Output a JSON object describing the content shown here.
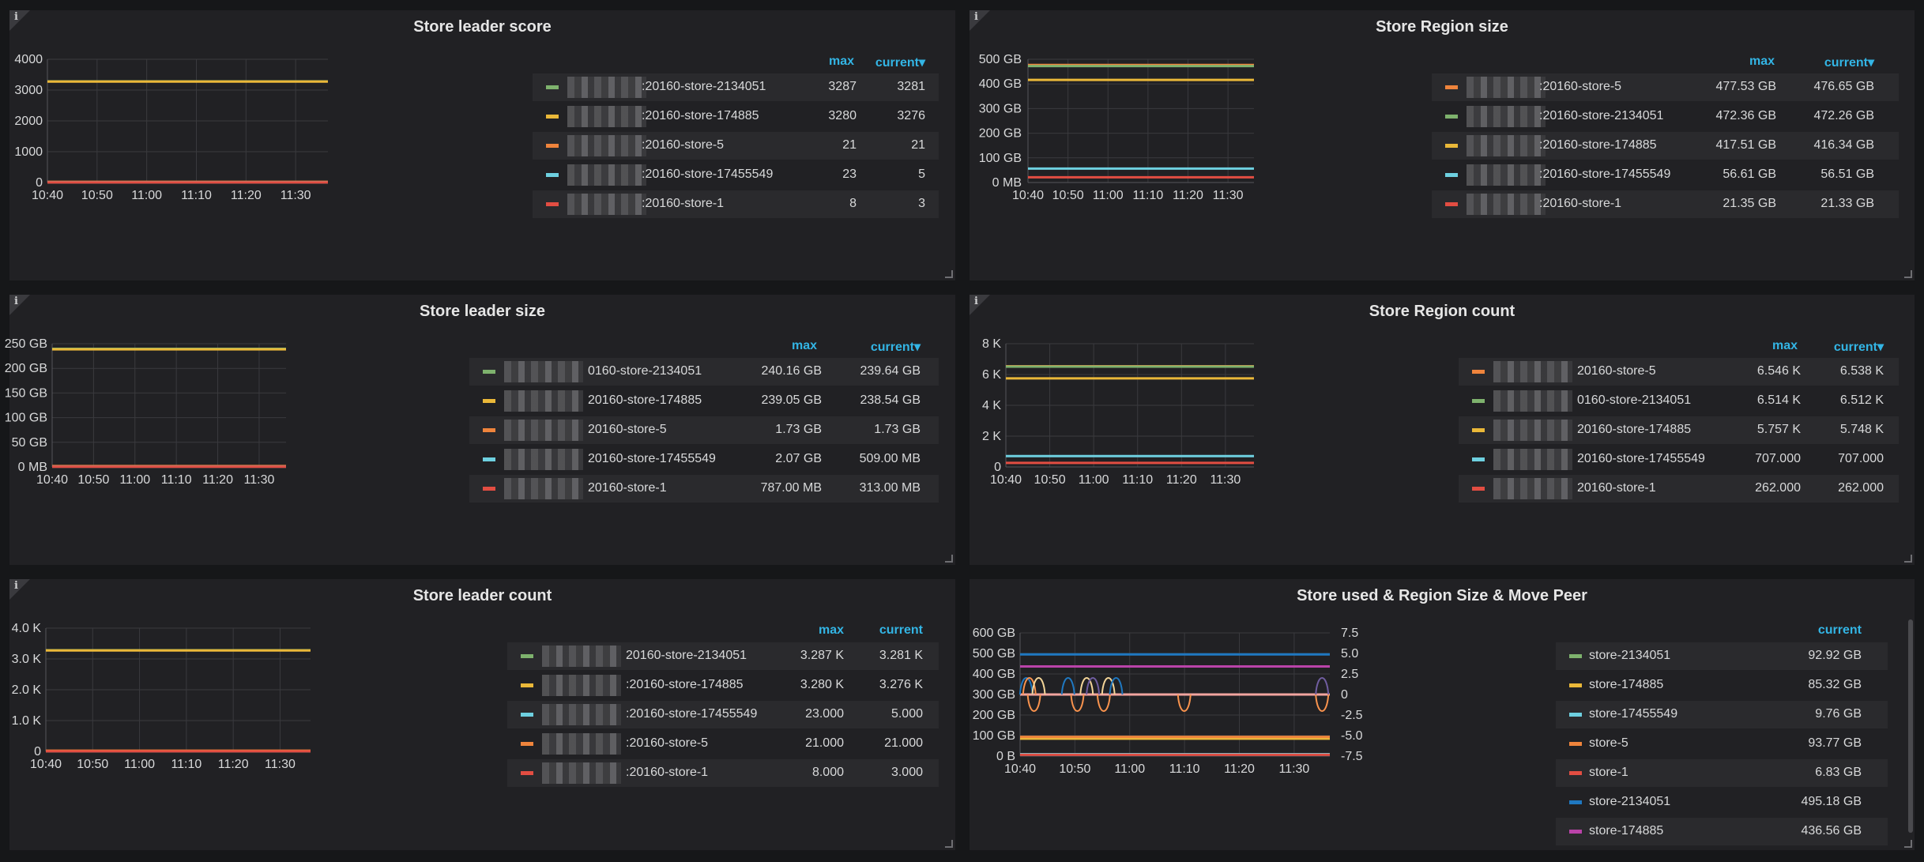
{
  "colors": {
    "green": "#7eb26d",
    "yellow": "#eab839",
    "orange": "#ef843c",
    "cyan": "#6ed0e0",
    "red": "#e24d42",
    "blue": "#1f78c1",
    "pink": "#ba43a9",
    "purple": "#705da0",
    "salmon": "#f9934e",
    "peach": "#f4d598",
    "teal": "#508642"
  },
  "info_glyph": "i",
  "panels": [
    {
      "title": "Store leader score",
      "legend_headers": {
        "max": "max",
        "current": "current▾"
      },
      "legend": [
        {
          "name": ":20160-store-2134051",
          "max": "3287",
          "current": "3281",
          "color": "green"
        },
        {
          "name": ":20160-store-174885",
          "max": "3280",
          "current": "3276",
          "color": "yellow"
        },
        {
          "name": ":20160-store-5",
          "max": "21",
          "current": "21",
          "color": "orange"
        },
        {
          "name": ":20160-store-17455549",
          "max": "23",
          "current": "5",
          "color": "cyan"
        },
        {
          "name": ":20160-store-1",
          "max": "8",
          "current": "3",
          "color": "red"
        }
      ]
    },
    {
      "title": "Store Region size",
      "legend_headers": {
        "max": "max",
        "current": "current▾"
      },
      "legend": [
        {
          "name": ":20160-store-5",
          "max": "477.53 GB",
          "current": "476.65 GB",
          "color": "orange"
        },
        {
          "name": ":20160-store-2134051",
          "max": "472.36 GB",
          "current": "472.26 GB",
          "color": "green"
        },
        {
          "name": ":20160-store-174885",
          "max": "417.51 GB",
          "current": "416.34 GB",
          "color": "yellow"
        },
        {
          "name": ":20160-store-17455549",
          "max": "56.61 GB",
          "current": "56.51 GB",
          "color": "cyan"
        },
        {
          "name": ":20160-store-1",
          "max": "21.35 GB",
          "current": "21.33 GB",
          "color": "red"
        }
      ]
    },
    {
      "title": "Store leader size",
      "legend_headers": {
        "max": "max",
        "current": "current▾"
      },
      "legend": [
        {
          "name": "0160-store-2134051",
          "max": "240.16 GB",
          "current": "239.64 GB",
          "color": "green"
        },
        {
          "name": "20160-store-174885",
          "max": "239.05 GB",
          "current": "238.54 GB",
          "color": "yellow"
        },
        {
          "name": "20160-store-5",
          "max": "1.73 GB",
          "current": "1.73 GB",
          "color": "orange"
        },
        {
          "name": "20160-store-17455549",
          "max": "2.07 GB",
          "current": "509.00 MB",
          "color": "cyan"
        },
        {
          "name": "20160-store-1",
          "max": "787.00 MB",
          "current": "313.00 MB",
          "color": "red"
        }
      ]
    },
    {
      "title": "Store Region count",
      "legend_headers": {
        "max": "max",
        "current": "current▾"
      },
      "legend": [
        {
          "name": "20160-store-5",
          "max": "6.546 K",
          "current": "6.538 K",
          "color": "orange"
        },
        {
          "name": "0160-store-2134051",
          "max": "6.514 K",
          "current": "6.512 K",
          "color": "green"
        },
        {
          "name": "20160-store-174885",
          "max": "5.757 K",
          "current": "5.748 K",
          "color": "yellow"
        },
        {
          "name": "20160-store-17455549",
          "max": "707.000",
          "current": "707.000",
          "color": "cyan"
        },
        {
          "name": "20160-store-1",
          "max": "262.000",
          "current": "262.000",
          "color": "red"
        }
      ]
    },
    {
      "title": "Store leader count",
      "legend_headers": {
        "max": "max",
        "current": "current"
      },
      "legend": [
        {
          "name": "20160-store-2134051",
          "max": "3.287 K",
          "current": "3.281 K",
          "color": "green"
        },
        {
          "name": ":20160-store-174885",
          "max": "3.280 K",
          "current": "3.276 K",
          "color": "yellow"
        },
        {
          "name": ":20160-store-17455549",
          "max": "23.000",
          "current": "5.000",
          "color": "cyan"
        },
        {
          "name": ":20160-store-5",
          "max": "21.000",
          "current": "21.000",
          "color": "orange"
        },
        {
          "name": ":20160-store-1",
          "max": "8.000",
          "current": "3.000",
          "color": "red"
        }
      ]
    },
    {
      "title": "Store used & Region Size & Move Peer",
      "legend_headers": {
        "max": "",
        "current": "current"
      },
      "legend": [
        {
          "name": "store-2134051",
          "max": "",
          "current": "92.92 GB",
          "color": "green"
        },
        {
          "name": "store-174885",
          "max": "",
          "current": "85.32 GB",
          "color": "yellow"
        },
        {
          "name": "store-17455549",
          "max": "",
          "current": "9.76 GB",
          "color": "cyan"
        },
        {
          "name": "store-5",
          "max": "",
          "current": "93.77 GB",
          "color": "orange"
        },
        {
          "name": "store-1",
          "max": "",
          "current": "6.83 GB",
          "color": "red"
        },
        {
          "name": "store-2134051",
          "max": "",
          "current": "495.18 GB",
          "color": "blue"
        },
        {
          "name": "store-174885",
          "max": "",
          "current": "436.56 GB",
          "color": "pink"
        }
      ]
    }
  ],
  "chart_data": [
    {
      "type": "line",
      "title": "Store leader score",
      "x": [
        "10:40",
        "10:50",
        "11:00",
        "11:10",
        "11:20",
        "11:30"
      ],
      "ylim": [
        0,
        4000
      ],
      "y_ticks": [
        "0",
        "1000",
        "2000",
        "3000",
        "4000"
      ],
      "grid": true,
      "series": [
        {
          "name": ":20160-store-2134051",
          "color": "green",
          "value": 3281
        },
        {
          "name": ":20160-store-174885",
          "color": "yellow",
          "value": 3276
        },
        {
          "name": ":20160-store-5",
          "color": "orange",
          "value": 21
        },
        {
          "name": ":20160-store-17455549",
          "color": "cyan",
          "value": 5
        },
        {
          "name": ":20160-store-1",
          "color": "red",
          "value": 3
        }
      ]
    },
    {
      "type": "line",
      "title": "Store Region size",
      "x": [
        "10:40",
        "10:50",
        "11:00",
        "11:10",
        "11:20",
        "11:30"
      ],
      "ylim": [
        0,
        500
      ],
      "y_ticks": [
        "0 MB",
        "100 GB",
        "200 GB",
        "300 GB",
        "400 GB",
        "500 GB"
      ],
      "grid": true,
      "series": [
        {
          "name": ":20160-store-5",
          "color": "orange",
          "value": 476.65
        },
        {
          "name": ":20160-store-2134051",
          "color": "green",
          "value": 472.26
        },
        {
          "name": ":20160-store-174885",
          "color": "yellow",
          "value": 416.34
        },
        {
          "name": ":20160-store-17455549",
          "color": "cyan",
          "value": 56.51
        },
        {
          "name": ":20160-store-1",
          "color": "red",
          "value": 21.33
        }
      ]
    },
    {
      "type": "line",
      "title": "Store leader size",
      "x": [
        "10:40",
        "10:50",
        "11:00",
        "11:10",
        "11:20",
        "11:30"
      ],
      "ylim": [
        0,
        250
      ],
      "y_ticks": [
        "0 MB",
        "50 GB",
        "100 GB",
        "150 GB",
        "200 GB",
        "250 GB"
      ],
      "grid": true,
      "series": [
        {
          "name": "0160-store-2134051",
          "color": "green",
          "value": 239.64
        },
        {
          "name": "20160-store-174885",
          "color": "yellow",
          "value": 238.54
        },
        {
          "name": "20160-store-5",
          "color": "orange",
          "value": 1.73
        },
        {
          "name": "20160-store-17455549",
          "color": "cyan",
          "value": 0.509
        },
        {
          "name": "20160-store-1",
          "color": "red",
          "value": 0.313
        }
      ]
    },
    {
      "type": "line",
      "title": "Store Region count",
      "x": [
        "10:40",
        "10:50",
        "11:00",
        "11:10",
        "11:20",
        "11:30"
      ],
      "ylim": [
        0,
        8000
      ],
      "y_ticks": [
        "0",
        "2 K",
        "4 K",
        "6 K",
        "8 K"
      ],
      "grid": true,
      "series": [
        {
          "name": "20160-store-5",
          "color": "orange",
          "value": 6538
        },
        {
          "name": "0160-store-2134051",
          "color": "green",
          "value": 6512
        },
        {
          "name": "20160-store-174885",
          "color": "yellow",
          "value": 5748
        },
        {
          "name": "20160-store-17455549",
          "color": "cyan",
          "value": 707
        },
        {
          "name": "20160-store-1",
          "color": "red",
          "value": 262
        }
      ]
    },
    {
      "type": "line",
      "title": "Store leader count",
      "x": [
        "10:40",
        "10:50",
        "11:00",
        "11:10",
        "11:20",
        "11:30"
      ],
      "ylim": [
        0,
        4000
      ],
      "y_ticks": [
        "0",
        "1.0 K",
        "2.0 K",
        "3.0 K",
        "4.0 K"
      ],
      "grid": true,
      "series": [
        {
          "name": "20160-store-2134051",
          "color": "green",
          "value": 3281
        },
        {
          "name": ":20160-store-174885",
          "color": "yellow",
          "value": 3276
        },
        {
          "name": ":20160-store-17455549",
          "color": "cyan",
          "value": 5
        },
        {
          "name": ":20160-store-5",
          "color": "orange",
          "value": 21
        },
        {
          "name": ":20160-store-1",
          "color": "red",
          "value": 3
        }
      ]
    },
    {
      "type": "line",
      "title": "Store used & Region Size & Move Peer",
      "x": [
        "10:40",
        "10:50",
        "11:00",
        "11:10",
        "11:20",
        "11:30"
      ],
      "ylim": [
        0,
        600
      ],
      "y_ticks": [
        "0 B",
        "100 GB",
        "200 GB",
        "300 GB",
        "400 GB",
        "500 GB",
        "600 GB"
      ],
      "y2lim": [
        -7.5,
        7.5
      ],
      "y2_ticks": [
        "-7.5",
        "-5.0",
        "-2.5",
        "0",
        "2.5",
        "5.0",
        "7.5"
      ],
      "grid": true,
      "series": [
        {
          "name": "store-2134051",
          "color": "green",
          "value": 92.92
        },
        {
          "name": "store-174885",
          "color": "yellow",
          "value": 85.32
        },
        {
          "name": "store-17455549",
          "color": "cyan",
          "value": 9.76
        },
        {
          "name": "store-5",
          "color": "orange",
          "value": 93.77
        },
        {
          "name": "store-1",
          "color": "red",
          "value": 6.83
        },
        {
          "name": "store-2134051",
          "color": "blue",
          "value": 495.18
        },
        {
          "name": "store-174885",
          "color": "pink",
          "value": 436.56
        }
      ]
    }
  ]
}
